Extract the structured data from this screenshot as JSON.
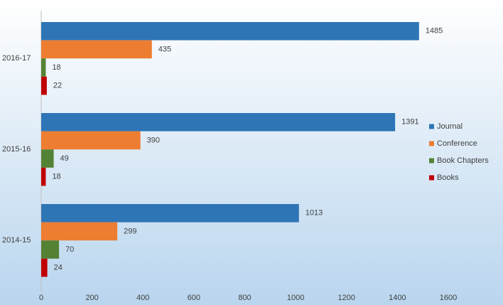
{
  "chart_data": {
    "type": "bar",
    "orientation": "horizontal",
    "categories": [
      "2016-17",
      "2015-16",
      "2014-15"
    ],
    "series": [
      {
        "name": "Journal",
        "color": "#2e75b6",
        "values": [
          1485,
          1391,
          1013
        ]
      },
      {
        "name": "Conference",
        "color": "#ed7d31",
        "values": [
          435,
          390,
          299
        ]
      },
      {
        "name": "Book Chapters",
        "color": "#548235",
        "values": [
          18,
          49,
          70
        ]
      },
      {
        "name": "Books",
        "color": "#c00000",
        "values": [
          22,
          18,
          24
        ]
      }
    ],
    "xlim": [
      0,
      1600
    ],
    "xticks": [
      0,
      200,
      400,
      600,
      800,
      1000,
      1200,
      1400,
      1600
    ],
    "legend": "right"
  }
}
